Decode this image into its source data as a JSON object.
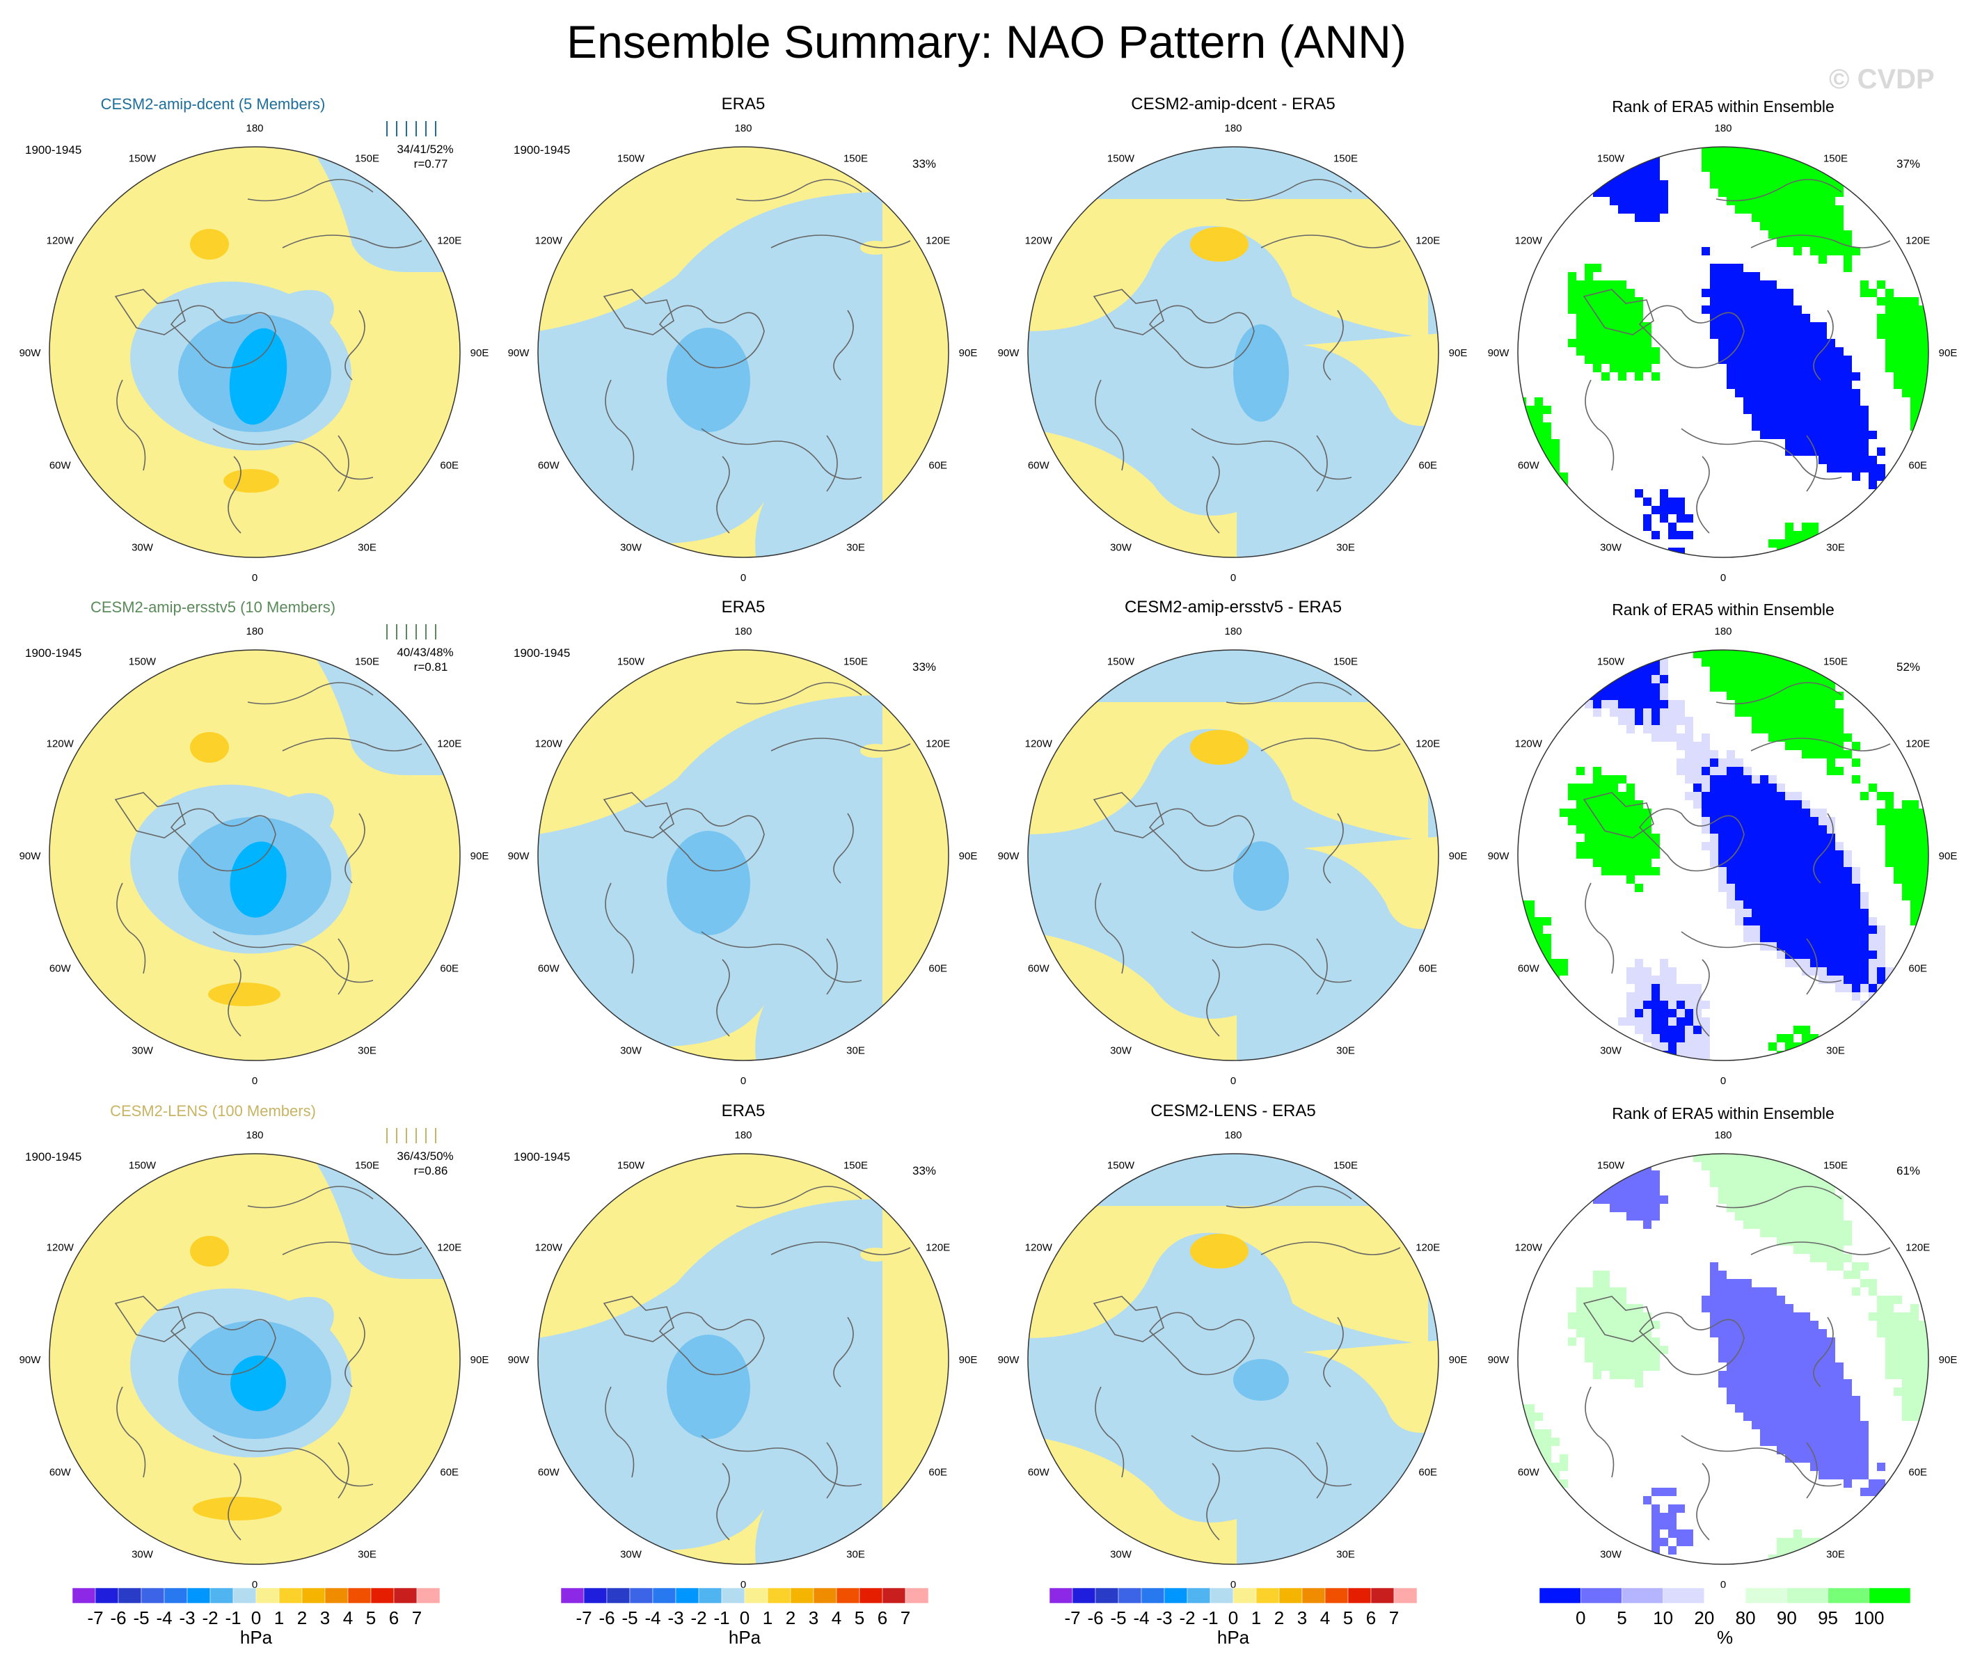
{
  "title": "Ensemble Summary: NAO Pattern (ANN)",
  "watermark": "© CVDP",
  "colors": {
    "ocean_light": "#b4dcf0",
    "land_light": "#fbf08f",
    "neg1": "#b4dcf0",
    "neg2": "#78c4f0",
    "neg3": "#00b4ff",
    "pos1": "#fbf08f",
    "pos2": "#fcd22a",
    "rank_blue": "#0014ff",
    "rank_green": "#00ff00",
    "rank_pale_blue": "#dcdcff",
    "rank_blue_mid": "#6e6eff",
    "rank_pale_green": "#c8ffc8"
  },
  "chart_data": [
    {
      "type": "heatmap",
      "projection": "polar-stereographic",
      "rows": [
        {
          "model_title": "CESM2-amip-dcent (5 Members)",
          "title_color": "#1e6e9b",
          "period": "1900-1945",
          "stats": "34/41/52%",
          "corr": "r=0.77",
          "era5_title": "ERA5",
          "era5_period": "1900-1945",
          "era5_pct": "33%",
          "diff_title": "CESM2-amip-dcent - ERA5",
          "rank_title": "Rank of ERA5 within Ensemble",
          "rank_pct": "37%"
        },
        {
          "model_title": "CESM2-amip-ersstv5 (10 Members)",
          "title_color": "#5a8a5a",
          "period": "1900-1945",
          "stats": "40/43/48%",
          "corr": "r=0.81",
          "era5_title": "ERA5",
          "era5_period": "1900-1945",
          "era5_pct": "33%",
          "diff_title": "CESM2-amip-ersstv5 - ERA5",
          "rank_title": "Rank of ERA5 within Ensemble",
          "rank_pct": "52%"
        },
        {
          "model_title": "CESM2-LENS (100 Members)",
          "title_color": "#c8b464",
          "period": "1900-1945",
          "stats": "36/43/50%",
          "corr": "r=0.86",
          "era5_title": "ERA5",
          "era5_period": "1900-1945",
          "era5_pct": "33%",
          "diff_title": "CESM2-LENS - ERA5",
          "rank_title": "Rank of ERA5 within Ensemble",
          "rank_pct": "61%"
        }
      ],
      "longitude_labels": [
        "180",
        "150E",
        "120E",
        "90E",
        "60E",
        "30E",
        "0",
        "30W",
        "60W",
        "90W",
        "120W",
        "150W"
      ],
      "hpa_colorbar": {
        "ticks": [
          "-7",
          "-6",
          "-5",
          "-4",
          "-3",
          "-2",
          "-1",
          "0",
          "1",
          "2",
          "3",
          "4",
          "5",
          "6",
          "7"
        ],
        "colors": [
          "#8c28e6",
          "#1e1edc",
          "#283cc8",
          "#3c64e6",
          "#2878f0",
          "#0096ff",
          "#50b4f0",
          "#b4dcf0",
          "#fbf08f",
          "#fcd22a",
          "#f5b400",
          "#f08c00",
          "#f05000",
          "#e61e00",
          "#c81e1e",
          "#ffaaaa"
        ],
        "units": "hPa"
      },
      "rank_colorbar": {
        "ticks": [
          "0",
          "5",
          "10",
          "20",
          "80",
          "90",
          "95",
          "100"
        ],
        "colors": [
          "#0014ff",
          "#6e6eff",
          "#b4b4ff",
          "#dcdcff",
          "#ffffff",
          "#dcffdc",
          "#c8ffc8",
          "#78ff78",
          "#00ff00"
        ],
        "units": "%"
      }
    }
  ]
}
